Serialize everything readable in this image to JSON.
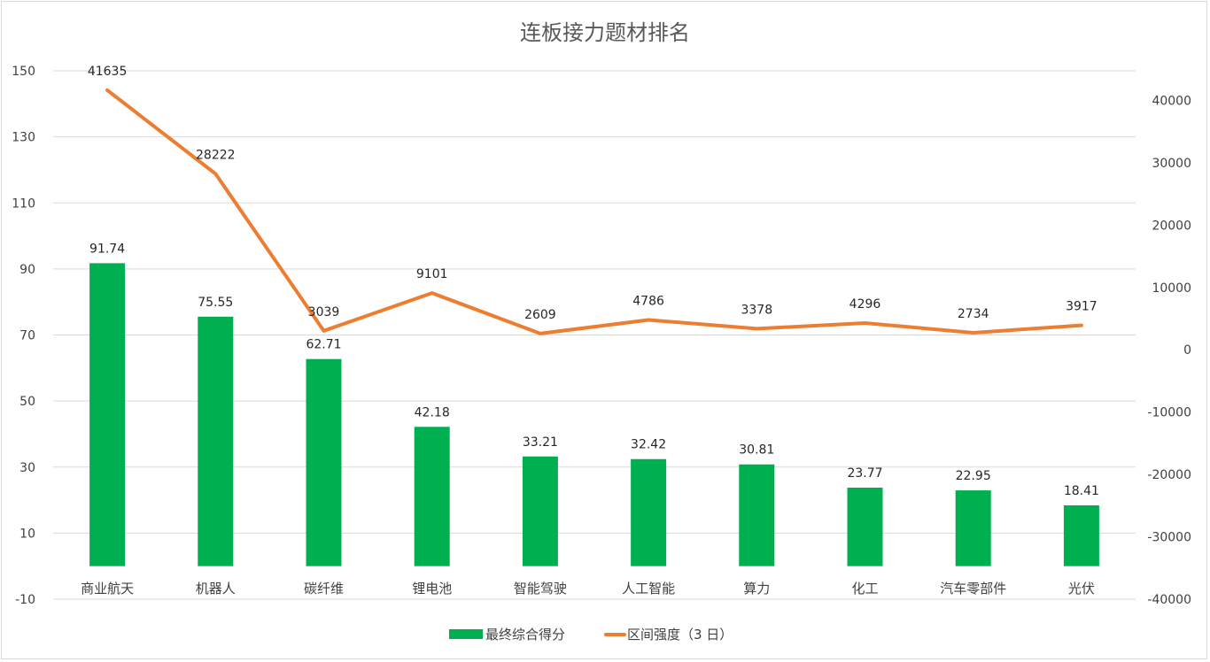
{
  "chart_data": {
    "type": "bar+line",
    "title": "连板接力题材排名",
    "categories": [
      "商业航天",
      "机器人",
      "碳纤维",
      "锂电池",
      "智能驾驶",
      "人工智能",
      "算力",
      "化工",
      "汽车零部件",
      "光伏"
    ],
    "series": [
      {
        "name": "最终综合得分",
        "type": "bar",
        "axis": "left",
        "color": "#00B050",
        "values": [
          91.74,
          75.55,
          62.71,
          42.18,
          33.21,
          32.42,
          30.81,
          23.77,
          22.95,
          18.41
        ]
      },
      {
        "name": "区间强度（3 日）",
        "type": "line",
        "axis": "right",
        "color": "#ED7D31",
        "values": [
          41635,
          28222,
          3039,
          9101,
          2609,
          4786,
          3378,
          4296,
          2734,
          3917
        ]
      }
    ],
    "left_axis": {
      "ticks": [
        150,
        130,
        110,
        90,
        70,
        50,
        30,
        10,
        -10
      ],
      "range": [
        -10,
        150
      ]
    },
    "right_axis": {
      "ticks": [
        40000,
        30000,
        20000,
        10000,
        0,
        -10000,
        -20000,
        -30000,
        -40000
      ],
      "range": [
        -40000,
        44744
      ]
    },
    "grid": true,
    "legend": "bottom"
  }
}
